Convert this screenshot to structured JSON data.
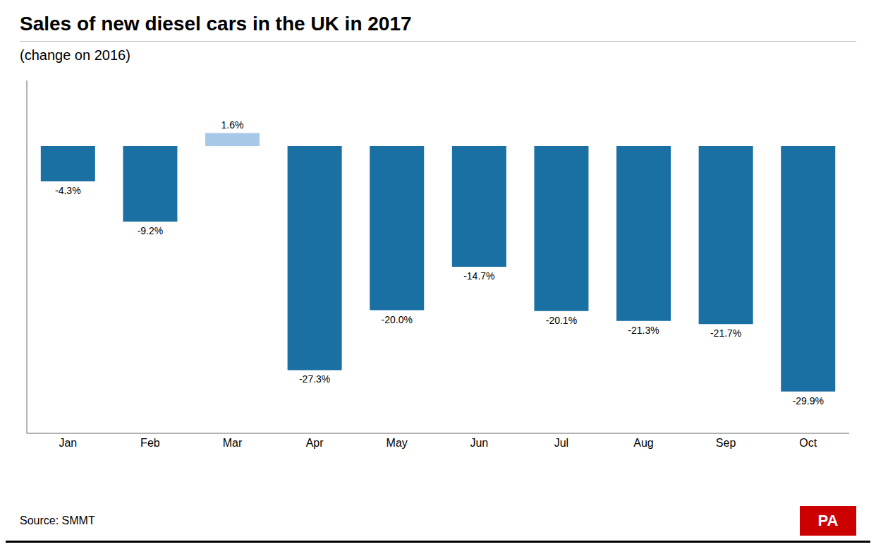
{
  "chart_data": {
    "type": "bar",
    "title": "Sales of new diesel cars in the UK in 2017",
    "subtitle": "(change on 2016)",
    "annotations": [
      "Source: SMMT",
      "PA"
    ],
    "categories": [
      "Jan",
      "Feb",
      "Mar",
      "Apr",
      "May",
      "Jun",
      "Jul",
      "Aug",
      "Sep",
      "Oct"
    ],
    "values": [
      -4.3,
      -9.2,
      1.6,
      -27.3,
      -20.0,
      -14.7,
      -20.1,
      -21.3,
      -21.7,
      -29.9
    ],
    "value_labels": [
      "-4.3%",
      "-9.2%",
      "1.6%",
      "-27.3%",
      "-20.0%",
      "-14.7%",
      "-20.1%",
      "-21.3%",
      "-21.7%",
      "-29.9%"
    ],
    "colors": [
      "#1a6fa3",
      "#1a6fa3",
      "#a8c8e8",
      "#1a6fa3",
      "#1a6fa3",
      "#1a6fa3",
      "#1a6fa3",
      "#1a6fa3",
      "#1a6fa3",
      "#1a6fa3"
    ],
    "ylim": [
      -35,
      8
    ],
    "data_labels": true,
    "tick_labels": "x",
    "grid": false
  }
}
